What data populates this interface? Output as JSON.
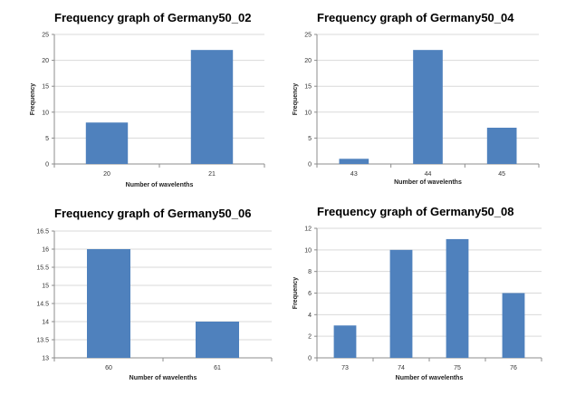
{
  "chart_data": [
    {
      "type": "bar",
      "title": "Frequency graph of Germany50_02",
      "xlabel": "Number of wavelenths",
      "ylabel": "Frequency",
      "categories": [
        "20",
        "21"
      ],
      "values": [
        8,
        22
      ],
      "ylim": [
        0,
        25
      ],
      "yticks": [
        0,
        5,
        10,
        15,
        20,
        25
      ],
      "grid": true,
      "bar_color": "#4f81bd"
    },
    {
      "type": "bar",
      "title": "Frequency graph of Germany50_04",
      "xlabel": "Number of wavelenths",
      "ylabel": "Frequency",
      "categories": [
        "43",
        "44",
        "45"
      ],
      "values": [
        1,
        22,
        7
      ],
      "ylim": [
        0,
        25
      ],
      "yticks": [
        0,
        5,
        10,
        15,
        20,
        25
      ],
      "grid": true,
      "bar_color": "#4f81bd"
    },
    {
      "type": "bar",
      "title": "Frequency graph of Germany50_06",
      "xlabel": "Number of wavelenths",
      "ylabel": "",
      "categories": [
        "60",
        "61"
      ],
      "values": [
        16,
        14
      ],
      "ylim": [
        13,
        16.5
      ],
      "yticks": [
        "13",
        "13.5",
        "14",
        "14.5",
        "15",
        "15.5",
        "16",
        "16.5"
      ],
      "grid": true,
      "bar_color": "#4f81bd"
    },
    {
      "type": "bar",
      "title": "Frequency graph of Germany50_08",
      "xlabel": "Number of wavelenths",
      "ylabel": "Frequency",
      "categories": [
        "73",
        "74",
        "75",
        "76"
      ],
      "values": [
        3,
        10,
        11,
        6
      ],
      "ylim": [
        0,
        12
      ],
      "yticks": [
        0,
        2,
        4,
        6,
        8,
        10,
        12
      ],
      "grid": true,
      "bar_color": "#4f81bd"
    }
  ]
}
